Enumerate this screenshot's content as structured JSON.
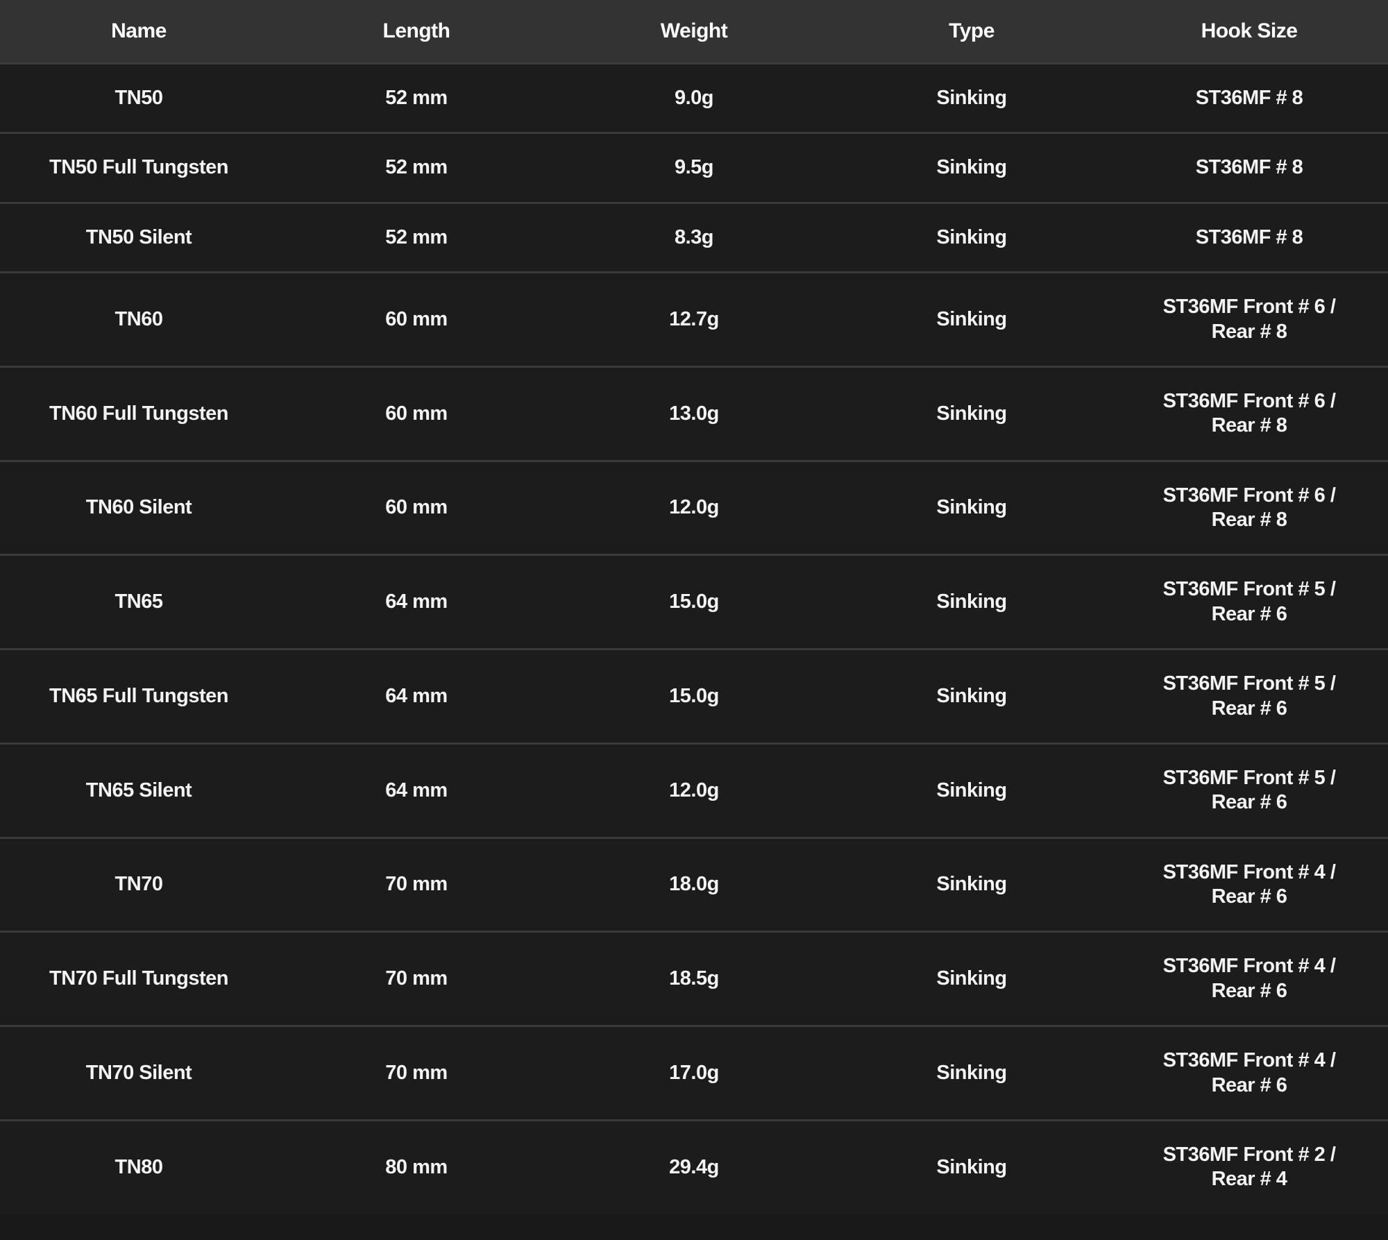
{
  "table": {
    "columns": [
      "Name",
      "Length",
      "Weight",
      "Type",
      "Hook Size"
    ],
    "rows": [
      {
        "name": "TN50",
        "length": "52 mm",
        "weight": "9.0g",
        "type": "Sinking",
        "hook": "ST36MF # 8"
      },
      {
        "name": "TN50 Full Tungsten",
        "length": "52 mm",
        "weight": "9.5g",
        "type": "Sinking",
        "hook": "ST36MF # 8"
      },
      {
        "name": "TN50 Silent",
        "length": "52 mm",
        "weight": "8.3g",
        "type": "Sinking",
        "hook": "ST36MF # 8"
      },
      {
        "name": "TN60",
        "length": "60 mm",
        "weight": "12.7g",
        "type": "Sinking",
        "hook": "ST36MF Front # 6 /\nRear # 8"
      },
      {
        "name": "TN60 Full Tungsten",
        "length": "60 mm",
        "weight": "13.0g",
        "type": "Sinking",
        "hook": "ST36MF Front # 6 /\nRear # 8"
      },
      {
        "name": "TN60 Silent",
        "length": "60 mm",
        "weight": "12.0g",
        "type": "Sinking",
        "hook": "ST36MF Front # 6 /\nRear # 8"
      },
      {
        "name": "TN65",
        "length": "64 mm",
        "weight": "15.0g",
        "type": "Sinking",
        "hook": "ST36MF Front # 5 /\nRear # 6"
      },
      {
        "name": "TN65 Full Tungsten",
        "length": "64 mm",
        "weight": "15.0g",
        "type": "Sinking",
        "hook": "ST36MF Front # 5 /\nRear # 6"
      },
      {
        "name": "TN65 Silent",
        "length": "64 mm",
        "weight": "12.0g",
        "type": "Sinking",
        "hook": "ST36MF Front # 5 /\nRear # 6"
      },
      {
        "name": "TN70",
        "length": "70 mm",
        "weight": "18.0g",
        "type": "Sinking",
        "hook": "ST36MF Front # 4 /\nRear # 6"
      },
      {
        "name": "TN70 Full Tungsten",
        "length": "70 mm",
        "weight": "18.5g",
        "type": "Sinking",
        "hook": "ST36MF Front # 4 /\nRear # 6"
      },
      {
        "name": "TN70 Silent",
        "length": "70 mm",
        "weight": "17.0g",
        "type": "Sinking",
        "hook": "ST36MF Front # 4 /\nRear # 6"
      },
      {
        "name": "TN80",
        "length": "80 mm",
        "weight": "29.4g",
        "type": "Sinking",
        "hook": "ST36MF Front # 2 /\nRear # 4"
      }
    ]
  },
  "colors": {
    "header_bg": "#333333",
    "row_bg": "#1c1c1c",
    "separator": "#3a3a3a",
    "text": "#f3f3f3"
  },
  "chart_data": {
    "type": "table",
    "title": "",
    "columns": [
      "Name",
      "Length",
      "Weight",
      "Type",
      "Hook Size"
    ],
    "rows": [
      [
        "TN50",
        "52 mm",
        "9.0g",
        "Sinking",
        "ST36MF # 8"
      ],
      [
        "TN50 Full Tungsten",
        "52 mm",
        "9.5g",
        "Sinking",
        "ST36MF # 8"
      ],
      [
        "TN50 Silent",
        "52 mm",
        "8.3g",
        "Sinking",
        "ST36MF # 8"
      ],
      [
        "TN60",
        "60 mm",
        "12.7g",
        "Sinking",
        "ST36MF Front # 6 / Rear # 8"
      ],
      [
        "TN60 Full Tungsten",
        "60 mm",
        "13.0g",
        "Sinking",
        "ST36MF Front # 6 / Rear # 8"
      ],
      [
        "TN60 Silent",
        "60 mm",
        "12.0g",
        "Sinking",
        "ST36MF Front # 6 / Rear # 8"
      ],
      [
        "TN65",
        "64 mm",
        "15.0g",
        "Sinking",
        "ST36MF Front # 5 / Rear # 6"
      ],
      [
        "TN65 Full Tungsten",
        "64 mm",
        "15.0g",
        "Sinking",
        "ST36MF Front # 5 / Rear # 6"
      ],
      [
        "TN65 Silent",
        "64 mm",
        "12.0g",
        "Sinking",
        "ST36MF Front # 5 / Rear # 6"
      ],
      [
        "TN70",
        "70 mm",
        "18.0g",
        "Sinking",
        "ST36MF Front # 4 / Rear # 6"
      ],
      [
        "TN70 Full Tungsten",
        "70 mm",
        "18.5g",
        "Sinking",
        "ST36MF Front # 4 / Rear # 6"
      ],
      [
        "TN70 Silent",
        "70 mm",
        "17.0g",
        "Sinking",
        "ST36MF Front # 4 / Rear # 6"
      ],
      [
        "TN80",
        "80 mm",
        "29.4g",
        "Sinking",
        "ST36MF Front # 2 / Rear # 4"
      ]
    ],
    "lengths_mm": [
      52,
      52,
      52,
      60,
      60,
      60,
      64,
      64,
      64,
      70,
      70,
      70,
      80
    ],
    "weights_g": [
      9.0,
      9.5,
      8.3,
      12.7,
      13.0,
      12.0,
      15.0,
      15.0,
      12.0,
      18.0,
      18.5,
      17.0,
      29.4
    ]
  }
}
